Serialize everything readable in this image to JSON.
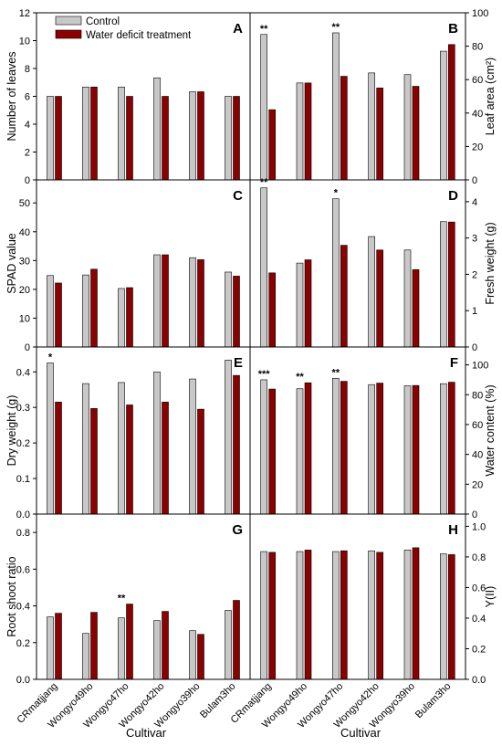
{
  "figure": {
    "xlabel": "Cultivar",
    "categories": [
      "CRmatjjang",
      "Wongyo49ho",
      "Wongyo47ho",
      "Wongyo42ho",
      "Wongyo39ho",
      "Bulam3ho"
    ],
    "colors": {
      "Control": "#c8c8c8",
      "Water deficit treatment": "#8b0000",
      "axis": "#000000"
    }
  },
  "chart_data": [
    {
      "type": "bar",
      "panel_label": "A",
      "ylabel": "Number of leaves",
      "ylim": [
        0,
        12
      ],
      "yticks": [
        "0",
        "2",
        "4",
        "6",
        "8",
        "10",
        "12"
      ],
      "legend": [
        "Control",
        "Water deficit treatment"
      ],
      "legend_position": "top-left",
      "categories": [
        "CRmatjjang",
        "Wongyo49ho",
        "Wongyo47ho",
        "Wongyo42ho",
        "Wongyo39ho",
        "Bulam3ho"
      ],
      "series": [
        {
          "name": "Control",
          "values": [
            6.0,
            6.67,
            6.67,
            7.33,
            6.33,
            6.0
          ]
        },
        {
          "name": "Water deficit treatment",
          "values": [
            6.0,
            6.67,
            6.0,
            6.0,
            6.33,
            6.0
          ]
        }
      ],
      "annotations": [
        "",
        "",
        "",
        "",
        "",
        ""
      ]
    },
    {
      "type": "bar",
      "panel_label": "B",
      "ylabel": "Leaf area (cm²)",
      "ylim": [
        0,
        100
      ],
      "yticks": [
        "0",
        "20",
        "40",
        "60",
        "80",
        "100"
      ],
      "categories": [
        "CRmatjjang",
        "Wongyo49ho",
        "Wongyo47ho",
        "Wongyo42ho",
        "Wongyo39ho",
        "Bulam3ho"
      ],
      "series": [
        {
          "name": "Control",
          "values": [
            87,
            58,
            88,
            64,
            63,
            77
          ]
        },
        {
          "name": "Water deficit treatment",
          "values": [
            42,
            58,
            62,
            55,
            56,
            81
          ]
        }
      ],
      "annotations": [
        "**",
        "",
        "**",
        "",
        "",
        ""
      ]
    },
    {
      "type": "bar",
      "panel_label": "C",
      "ylabel": "SPAD value",
      "ylim": [
        0,
        58
      ],
      "yticks": [
        "0",
        "10",
        "20",
        "30",
        "40",
        "50"
      ],
      "categories": [
        "CRmatjjang",
        "Wongyo49ho",
        "Wongyo47ho",
        "Wongyo42ho",
        "Wongyo39ho",
        "Bulam3ho"
      ],
      "series": [
        {
          "name": "Control",
          "values": [
            24.8,
            25.0,
            20.3,
            32.0,
            31.0,
            26.0
          ]
        },
        {
          "name": "Water deficit treatment",
          "values": [
            22.2,
            27.0,
            20.6,
            32.0,
            30.3,
            24.6
          ]
        }
      ],
      "annotations": [
        "",
        "",
        "",
        "",
        "",
        ""
      ]
    },
    {
      "type": "bar",
      "panel_label": "D",
      "ylabel": "Fresh weight (g)",
      "ylim": [
        0,
        4.6
      ],
      "yticks": [
        "0",
        "1",
        "2",
        "3",
        "4"
      ],
      "categories": [
        "CRmatjjang",
        "Wongyo49ho",
        "Wongyo47ho",
        "Wongyo42ho",
        "Wongyo39ho",
        "Bulam3ho"
      ],
      "series": [
        {
          "name": "Control",
          "values": [
            4.38,
            2.31,
            4.08,
            3.04,
            2.67,
            3.45
          ]
        },
        {
          "name": "Water deficit treatment",
          "values": [
            2.04,
            2.4,
            2.8,
            2.67,
            2.13,
            3.44
          ]
        }
      ],
      "annotations": [
        "**",
        "",
        "*",
        "",
        "",
        ""
      ]
    },
    {
      "type": "bar",
      "panel_label": "E",
      "ylabel": "Dry weight (g)",
      "ylim": [
        0,
        0.47
      ],
      "yticks": [
        "0.0",
        "0.1",
        "0.2",
        "0.3",
        "0.4"
      ],
      "categories": [
        "CRmatjjang",
        "Wongyo49ho",
        "Wongyo47ho",
        "Wongyo42ho",
        "Wongyo39ho",
        "Bulam3ho"
      ],
      "series": [
        {
          "name": "Control",
          "values": [
            0.425,
            0.367,
            0.37,
            0.4,
            0.38,
            0.433
          ]
        },
        {
          "name": "Water deficit treatment",
          "values": [
            0.315,
            0.297,
            0.307,
            0.315,
            0.295,
            0.39
          ]
        }
      ],
      "annotations": [
        "*",
        "",
        "",
        "",
        "",
        ""
      ]
    },
    {
      "type": "bar",
      "panel_label": "F",
      "ylabel": "Water content (%)",
      "ylim": [
        0,
        112
      ],
      "yticks": [
        "0",
        "20",
        "40",
        "60",
        "80",
        "100"
      ],
      "categories": [
        "CRmatjjang",
        "Wongyo49ho",
        "Wongyo47ho",
        "Wongyo42ho",
        "Wongyo39ho",
        "Bulam3ho"
      ],
      "series": [
        {
          "name": "Control",
          "values": [
            90.0,
            84.0,
            91.0,
            86.8,
            86.0,
            87.4
          ]
        },
        {
          "name": "Water deficit treatment",
          "values": [
            83.8,
            88.0,
            89.0,
            87.8,
            86.2,
            88.4
          ]
        }
      ],
      "annotations": [
        "***",
        "**",
        "**",
        "",
        "",
        ""
      ]
    },
    {
      "type": "bar",
      "panel_label": "G",
      "ylabel": "Root shoot ratio",
      "ylim": [
        0,
        0.9
      ],
      "yticks": [
        "0.0",
        "0.2",
        "0.4",
        "0.6",
        "0.8"
      ],
      "categories": [
        "CRmatjjang",
        "Wongyo49ho",
        "Wongyo47ho",
        "Wongyo42ho",
        "Wongyo39ho",
        "Bulam3ho"
      ],
      "series": [
        {
          "name": "Control",
          "values": [
            0.34,
            0.25,
            0.335,
            0.32,
            0.265,
            0.375
          ]
        },
        {
          "name": "Water deficit treatment",
          "values": [
            0.36,
            0.365,
            0.41,
            0.37,
            0.245,
            0.43
          ]
        }
      ],
      "annotations": [
        "",
        "",
        "**",
        "",
        "",
        ""
      ]
    },
    {
      "type": "bar",
      "panel_label": "H",
      "ylabel": "Y(II)",
      "ylim": [
        0,
        1.08
      ],
      "yticks": [
        "0.0",
        "0.2",
        "0.4",
        "0.6",
        "0.8",
        "1.0"
      ],
      "categories": [
        "CRmatjjang",
        "Wongyo49ho",
        "Wongyo47ho",
        "Wongyo42ho",
        "Wongyo39ho",
        "Bulam3ho"
      ],
      "series": [
        {
          "name": "Control",
          "values": [
            0.835,
            0.835,
            0.835,
            0.84,
            0.845,
            0.82
          ]
        },
        {
          "name": "Water deficit treatment",
          "values": [
            0.83,
            0.845,
            0.84,
            0.83,
            0.86,
            0.815
          ]
        }
      ],
      "annotations": [
        "",
        "",
        "",
        "",
        "",
        ""
      ]
    }
  ]
}
